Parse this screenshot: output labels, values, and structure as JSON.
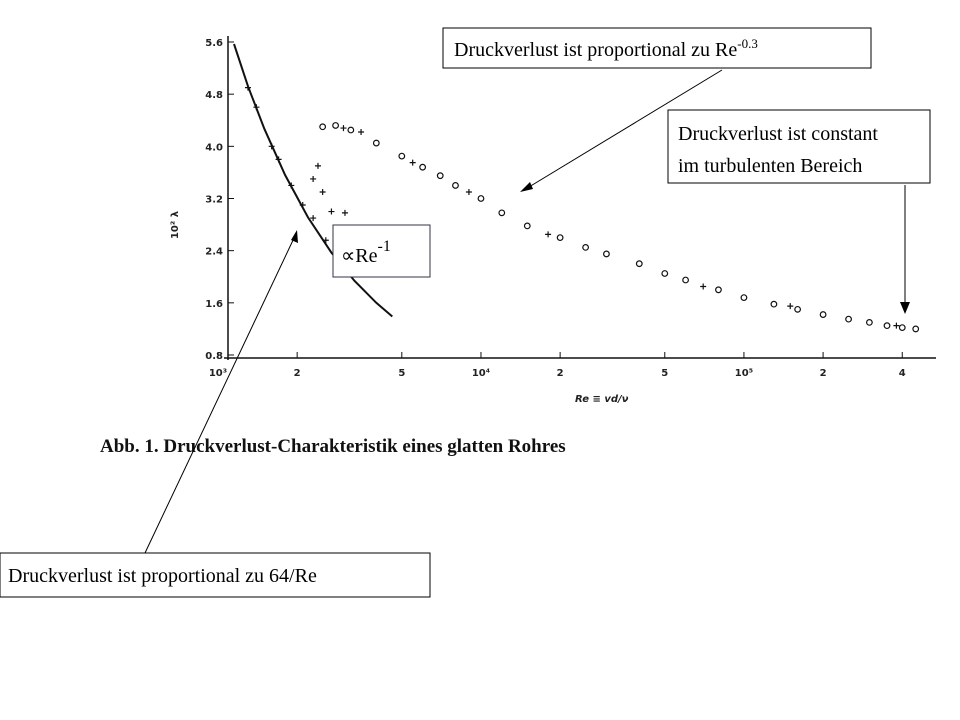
{
  "chart_data": {
    "type": "scatter",
    "x_label": "Re ≡ vd/ν",
    "y_label": "10² λ",
    "caption": "Abb. 1. Druckverlust-Charakteristik eines glatten Rohres",
    "xscale": "log",
    "xlim": [
      1000,
      510000
    ],
    "ylim": [
      0.8,
      5.6
    ],
    "xticks": [
      {
        "value": 1000,
        "label": "10³"
      },
      {
        "value": 2000,
        "label": "2"
      },
      {
        "value": 5000,
        "label": "5"
      },
      {
        "value": 10000,
        "label": "10⁴"
      },
      {
        "value": 20000,
        "label": "2"
      },
      {
        "value": 50000,
        "label": "5"
      },
      {
        "value": 100000,
        "label": "10⁵"
      },
      {
        "value": 200000,
        "label": "2"
      },
      {
        "value": 400000,
        "label": "4"
      }
    ],
    "yticks": [
      0.8,
      1.6,
      2.4,
      3.2,
      {
        "value": 4,
        "label": "4.0"
      },
      4.8,
      5.6
    ],
    "color": "#111111",
    "series": [
      {
        "mode": "line",
        "x": [
          1150,
          1300,
          1500,
          1800,
          2200,
          2700,
          3300,
          4000,
          4600
        ],
        "values": [
          5.57,
          4.92,
          4.27,
          3.56,
          2.91,
          2.37,
          1.94,
          1.6,
          1.39
        ]
      },
      {
        "mode": "marker",
        "marker": "circle",
        "x": [
          2500,
          2800,
          3200,
          4000,
          5000,
          6000,
          7000,
          8000,
          10000,
          12000,
          15000,
          20000,
          25000,
          30000,
          40000,
          50000,
          60000,
          80000,
          100000,
          130000,
          160000,
          200000,
          250000,
          300000,
          350000,
          400000,
          450000
        ],
        "values": [
          4.3,
          4.32,
          4.25,
          4.05,
          3.85,
          3.68,
          3.55,
          3.4,
          3.2,
          2.98,
          2.78,
          2.6,
          2.45,
          2.35,
          2.2,
          2.05,
          1.95,
          1.8,
          1.68,
          1.58,
          1.5,
          1.42,
          1.35,
          1.3,
          1.25,
          1.22,
          1.2
        ]
      },
      {
        "mode": "marker",
        "marker": "plus",
        "x": [
          1300,
          1400,
          1600,
          1700,
          1900,
          2100,
          2300,
          2300,
          2400,
          2500,
          2570,
          2700,
          3040,
          3000,
          3500,
          5500,
          9000,
          18000,
          70000,
          150000,
          380000
        ],
        "values": [
          4.9,
          4.6,
          4.0,
          3.8,
          3.4,
          3.1,
          2.9,
          3.5,
          3.7,
          3.3,
          2.56,
          3.0,
          2.98,
          4.28,
          4.22,
          3.75,
          3.3,
          2.65,
          1.85,
          1.55,
          1.25
        ]
      }
    ]
  },
  "annotations": {
    "re_03": {
      "text": "Druckverlust ist proportional zu Re",
      "sup": "-0.3"
    },
    "constant": {
      "lines": [
        "Druckverlust ist constant",
        "im turbulenten Bereich"
      ]
    },
    "re_1": {
      "text": "∝Re",
      "sup": "-1"
    },
    "laminar": {
      "text": "Druckverlust ist proportional zu 64/Re"
    }
  }
}
